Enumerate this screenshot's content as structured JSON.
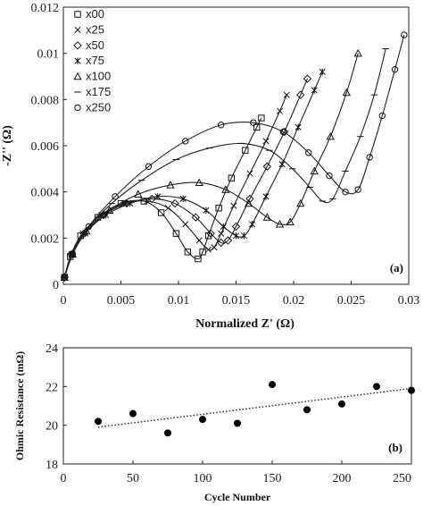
{
  "chart_data": [
    {
      "type": "scatter",
      "panel_label": "(a)",
      "xlabel": "Normalized Z' (Ω)",
      "ylabel": "-Z'' (Ω)",
      "xlim": [
        0,
        0.03
      ],
      "ylim": [
        0,
        0.012
      ],
      "xticks": [
        "0",
        "0.005",
        "0.01",
        "0.015",
        "0.02",
        "0.025",
        "0.03"
      ],
      "yticks": [
        "0",
        "0.002",
        "0.004",
        "0.006",
        "0.008",
        "0.01",
        "0.012"
      ],
      "legend_position": "top-left",
      "series": [
        {
          "name": "x00",
          "marker": "square",
          "x": [
            0.0001,
            0.0006,
            0.0015,
            0.003,
            0.005,
            0.007,
            0.0085,
            0.0098,
            0.0108,
            0.0117,
            0.0121,
            0.0126,
            0.0135,
            0.0146,
            0.0158,
            0.0168,
            0.0172
          ],
          "y": [
            0.0003,
            0.0012,
            0.0021,
            0.0029,
            0.0035,
            0.0036,
            0.0031,
            0.0022,
            0.0014,
            0.0011,
            0.0014,
            0.0021,
            0.0033,
            0.0046,
            0.0058,
            0.0068,
            0.0072
          ]
        },
        {
          "name": "x25",
          "marker": "x",
          "x": [
            0.0001,
            0.0007,
            0.0017,
            0.0033,
            0.0053,
            0.0073,
            0.0091,
            0.0106,
            0.0118,
            0.0126,
            0.0131,
            0.0137,
            0.0148,
            0.0162,
            0.0176,
            0.0188,
            0.0194
          ],
          "y": [
            0.0003,
            0.0013,
            0.0022,
            0.003,
            0.0035,
            0.0036,
            0.0033,
            0.0026,
            0.0019,
            0.0015,
            0.0016,
            0.0022,
            0.0034,
            0.0048,
            0.0062,
            0.0075,
            0.0082
          ]
        },
        {
          "name": "x50",
          "marker": "diamond",
          "x": [
            0.0001,
            0.0007,
            0.0018,
            0.0035,
            0.0055,
            0.0077,
            0.0097,
            0.0115,
            0.0128,
            0.0137,
            0.0143,
            0.015,
            0.0162,
            0.0177,
            0.0192,
            0.0206,
            0.0212
          ],
          "y": [
            0.0003,
            0.0013,
            0.0022,
            0.003,
            0.0035,
            0.0037,
            0.0035,
            0.0029,
            0.0022,
            0.0018,
            0.0019,
            0.0025,
            0.0037,
            0.0051,
            0.0066,
            0.0082,
            0.0089
          ]
        },
        {
          "name": "x75",
          "marker": "star",
          "x": [
            0.0001,
            0.0008,
            0.0019,
            0.0037,
            0.0058,
            0.0082,
            0.0104,
            0.0124,
            0.0139,
            0.015,
            0.0157,
            0.0164,
            0.0176,
            0.019,
            0.0204,
            0.0218,
            0.0225
          ],
          "y": [
            0.0003,
            0.0013,
            0.0022,
            0.003,
            0.0035,
            0.0038,
            0.0037,
            0.0032,
            0.0025,
            0.0021,
            0.0021,
            0.0026,
            0.0038,
            0.0052,
            0.0068,
            0.0084,
            0.0092
          ]
        },
        {
          "name": "x100",
          "marker": "triangle",
          "x": [
            0.0001,
            0.0008,
            0.002,
            0.004,
            0.0065,
            0.0093,
            0.0118,
            0.0141,
            0.0161,
            0.0177,
            0.0188,
            0.0197,
            0.0206,
            0.0218,
            0.0232,
            0.0246,
            0.0256
          ],
          "y": [
            0.0003,
            0.0013,
            0.0023,
            0.0032,
            0.0039,
            0.0043,
            0.0044,
            0.0041,
            0.0035,
            0.0029,
            0.0026,
            0.0027,
            0.0035,
            0.0049,
            0.0064,
            0.0083,
            0.01
          ]
        },
        {
          "name": "x175",
          "marker": "dash",
          "x": [
            0.0001,
            0.0008,
            0.0021,
            0.0042,
            0.0068,
            0.0098,
            0.0127,
            0.0155,
            0.0179,
            0.0199,
            0.0214,
            0.0225,
            0.0234,
            0.0245,
            0.0258,
            0.027,
            0.028
          ],
          "y": [
            0.0003,
            0.0013,
            0.0024,
            0.0035,
            0.0045,
            0.0054,
            0.0059,
            0.0061,
            0.0058,
            0.005,
            0.0042,
            0.0036,
            0.0037,
            0.0049,
            0.0064,
            0.0082,
            0.0102
          ]
        },
        {
          "name": "x250",
          "marker": "circle",
          "x": [
            0.0001,
            0.0008,
            0.0022,
            0.0045,
            0.0074,
            0.0106,
            0.0137,
            0.0165,
            0.0191,
            0.0213,
            0.0231,
            0.0245,
            0.0256,
            0.0266,
            0.0277,
            0.0288,
            0.0296
          ],
          "y": [
            0.0003,
            0.0013,
            0.0025,
            0.0038,
            0.0051,
            0.0062,
            0.0069,
            0.007,
            0.0066,
            0.0057,
            0.0047,
            0.004,
            0.0041,
            0.0055,
            0.0073,
            0.0093,
            0.0108
          ]
        }
      ]
    },
    {
      "type": "scatter",
      "panel_label": "(b)",
      "xlabel": "Cycle Number",
      "ylabel": "Ohmic Resistance (mΩ)",
      "xlim": [
        0,
        250
      ],
      "ylim": [
        18,
        24
      ],
      "xticks": [
        "0",
        "50",
        "100",
        "150",
        "200",
        "250"
      ],
      "yticks": [
        "18",
        "20",
        "22",
        "24"
      ],
      "series": [
        {
          "x": [
            25,
            50,
            75,
            100,
            125,
            150,
            175,
            200,
            225,
            250
          ],
          "y": [
            20.2,
            20.6,
            19.6,
            20.3,
            20.1,
            22.1,
            20.8,
            21.1,
            22.0,
            21.8
          ]
        }
      ],
      "trendline": {
        "style": "dotted",
        "x": [
          25,
          250
        ],
        "y": [
          19.9,
          21.9
        ]
      }
    }
  ]
}
